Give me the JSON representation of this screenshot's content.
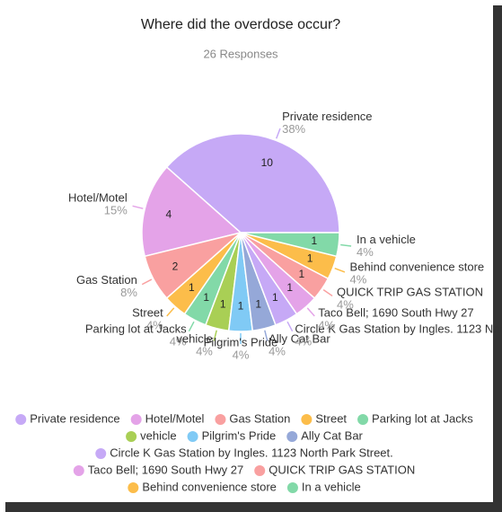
{
  "chart_data": {
    "type": "pie",
    "title": "Where did the overdose occur?",
    "subtitle": "26 Responses",
    "categories": [
      "Private residence",
      "Hotel/Motel",
      "Gas Station",
      "Street",
      "Parking lot at Jacks",
      "vehicle",
      "Pilgrim's Pride",
      "Ally Cat Bar",
      "Circle K Gas Station by Ingles. 1123 North Park Street.",
      "Taco Bell; 1690 South Hwy 27",
      "QUICK TRIP GAS STATION",
      "Behind convenience store",
      "In a vehicle"
    ],
    "values": [
      10,
      4,
      2,
      1,
      1,
      1,
      1,
      1,
      1,
      1,
      1,
      1,
      1
    ],
    "percent_labels": [
      "38%",
      "15%",
      "8%",
      "4%",
      "4%",
      "4%",
      "4%",
      "4%",
      "4%",
      "4%",
      "4%",
      "4%",
      "4%"
    ],
    "colors": [
      "#c6a9f6",
      "#e4a3e8",
      "#f9a0a0",
      "#fcbd4a",
      "#82d9a8",
      "#a9cf55",
      "#80caf5",
      "#95a8d8",
      "#c6a9f6",
      "#e4a3e8",
      "#f9a0a0",
      "#fcbd4a",
      "#82d9a8"
    ],
    "legend": "bottom"
  }
}
